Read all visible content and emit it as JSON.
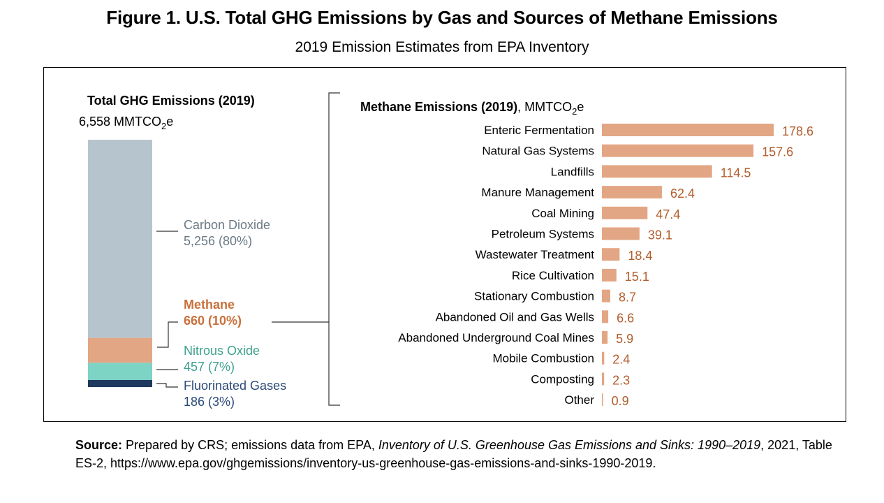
{
  "figure": {
    "title": "Figure 1. U.S. Total GHG Emissions by Gas and Sources of Methane Emissions",
    "subtitle": "2019 Emission Estimates from EPA Inventory"
  },
  "colors": {
    "co2": "#b6c5cd",
    "methane": "#e3a684",
    "n2o": "#7dd3c4",
    "fluorinated": "#1f3a5f",
    "co2_text": "#6a7a85",
    "methane_text": "#c9713c",
    "n2o_text": "#3ea18e",
    "fluorinated_text": "#2a4a78"
  },
  "chart_data": [
    {
      "type": "bar",
      "stacked": true,
      "title": "Total GHG Emissions (2019)",
      "total_label": "6,558 MMTCO",
      "total_sub": "2",
      "total_suffix": "e",
      "total": 6558,
      "series": [
        {
          "name": "Carbon Dioxide",
          "value": 5256,
          "value_label": "5,256 (80%)",
          "color_key": "co2"
        },
        {
          "name": "Methane",
          "value": 660,
          "value_label": "660 (10%)",
          "color_key": "methane"
        },
        {
          "name": "Nitrous Oxide",
          "value": 457,
          "value_label": "457 (7%)",
          "color_key": "n2o"
        },
        {
          "name": "Fluorinated Gases",
          "value": 186,
          "value_label": "186 (3%)",
          "color_key": "fluorinated"
        }
      ]
    },
    {
      "type": "bar",
      "orientation": "horizontal",
      "title": "Methane Emissions (2019)",
      "unit": ", MMTCO",
      "unit_sub": "2",
      "unit_suffix": "e",
      "categories": [
        "Enteric Fermentation",
        "Natural Gas Systems",
        "Landfills",
        "Manure Management",
        "Coal Mining",
        "Petroleum Systems",
        "Wastewater Treatment",
        "Rice Cultivation",
        "Stationary Combustion",
        "Abandoned Oil and Gas Wells",
        "Abandoned Underground Coal Mines",
        "Mobile Combustion",
        "Composting",
        "Other"
      ],
      "values": [
        178.6,
        157.6,
        114.5,
        62.4,
        47.4,
        39.1,
        18.4,
        15.1,
        8.7,
        6.6,
        5.9,
        2.4,
        2.3,
        0.9
      ],
      "value_labels": [
        "178.6",
        "157.6",
        "114.5",
        "62.4",
        "47.4",
        "39.1",
        "18.4",
        "15.1",
        "8.7",
        "6.6",
        "5.9",
        "2.4",
        "2.3",
        "0.9"
      ]
    }
  ],
  "source": {
    "label": "Source:",
    "text1": " Prepared by CRS; emissions data from EPA, ",
    "title": "Inventory of U.S. Greenhouse Gas Emissions and Sinks: 1990–2019",
    "text2": ", 2021, Table ES-2, https://www.epa.gov/ghgemissions/inventory-us-greenhouse-gas-emissions-and-sinks-1990-2019."
  }
}
